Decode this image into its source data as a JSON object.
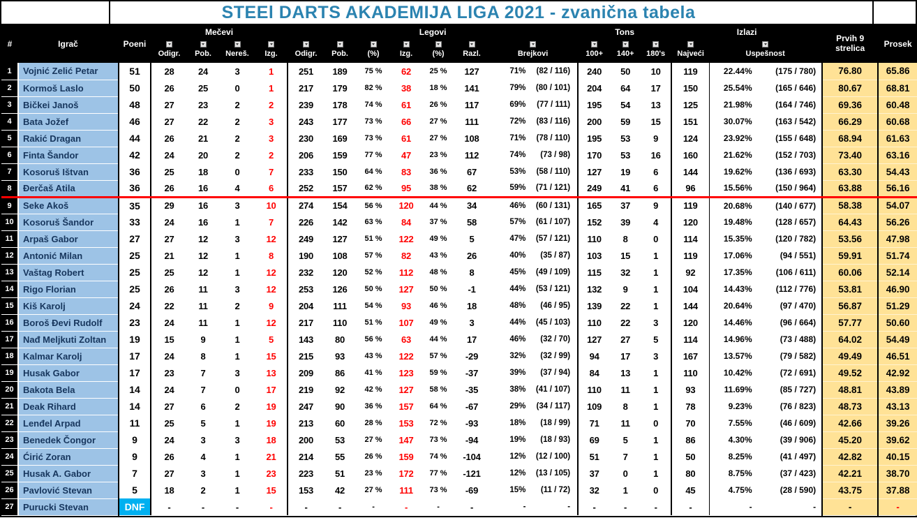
{
  "title": "STEEl DARTS AKADEMIJA LIGA 2021 - zvanična tabela",
  "headers": {
    "rank": "#",
    "player": "Igrač",
    "points": "Poeni",
    "groups": [
      "Mečevi",
      "Legovi",
      "Tons",
      "Izlazi"
    ],
    "sub": [
      "Odigr.",
      "Pob.",
      "Nereš.",
      "Izg.",
      "Odigr.",
      "Pob.",
      "(%)",
      "Izg.",
      "(%)",
      "Razl.",
      "Brejkovi",
      "100+",
      "140+",
      "180's",
      "Najveći",
      "Uspešnost"
    ],
    "first9": "Prvih 9 strelica",
    "average": "Prosek"
  },
  "colors": {
    "title_text": "#2B83B0",
    "header_bg": "#000000",
    "player_bg": "#9DC3E6",
    "player_text": "#17365D",
    "highlight_bg": "#FFE296",
    "loss_red": "#FF0000",
    "dnf_bg": "#00B0F0",
    "separator_red": "#FF0000"
  },
  "chart_data": {
    "type": "table",
    "title": "STEEl DARTS AKADEMIJA LIGA 2021 - zvanična tabela",
    "columns": [
      "#",
      "Igrač",
      "Poeni",
      "Odigr.",
      "Pob.",
      "Nereš.",
      "Izg.",
      "Odigr.",
      "Pob.",
      "(%)",
      "Izg.",
      "(%)",
      "Razl.",
      "Brejkovi",
      "100+",
      "140+",
      "180's",
      "Najveći",
      "Uspešnost",
      "Prvih 9 strelica",
      "Prosek"
    ],
    "rows": [
      {
        "rank": "1",
        "player": "Vojnić Zelić Petar",
        "points": "51",
        "m": [
          "28",
          "24",
          "3",
          "1"
        ],
        "l": [
          "251",
          "189",
          "75 %",
          "62",
          "25 %",
          "127"
        ],
        "brk": [
          "71%",
          "(82 / 116)"
        ],
        "tons": [
          "240",
          "50",
          "10"
        ],
        "co_max": "119",
        "co_pct": "22.44%",
        "co_frac": "(175 / 780)",
        "f9": "76.80",
        "avg": "65.86"
      },
      {
        "rank": "2",
        "player": "Kormoš Laslo",
        "points": "50",
        "m": [
          "26",
          "25",
          "0",
          "1"
        ],
        "l": [
          "217",
          "179",
          "82 %",
          "38",
          "18 %",
          "141"
        ],
        "brk": [
          "79%",
          "(80 / 101)"
        ],
        "tons": [
          "204",
          "64",
          "17"
        ],
        "co_max": "150",
        "co_pct": "25.54%",
        "co_frac": "(165 / 646)",
        "f9": "80.67",
        "avg": "68.81"
      },
      {
        "rank": "3",
        "player": "Bičkei Janoš",
        "points": "48",
        "m": [
          "27",
          "23",
          "2",
          "2"
        ],
        "l": [
          "239",
          "178",
          "74 %",
          "61",
          "26 %",
          "117"
        ],
        "brk": [
          "69%",
          "(77 / 111)"
        ],
        "tons": [
          "195",
          "54",
          "13"
        ],
        "co_max": "125",
        "co_pct": "21.98%",
        "co_frac": "(164 / 746)",
        "f9": "69.36",
        "avg": "60.48"
      },
      {
        "rank": "4",
        "player": "Bata Jožef",
        "points": "46",
        "m": [
          "27",
          "22",
          "2",
          "3"
        ],
        "l": [
          "243",
          "177",
          "73 %",
          "66",
          "27 %",
          "111"
        ],
        "brk": [
          "72%",
          "(83 / 116)"
        ],
        "tons": [
          "200",
          "59",
          "15"
        ],
        "co_max": "151",
        "co_pct": "30.07%",
        "co_frac": "(163 / 542)",
        "f9": "66.29",
        "avg": "60.68"
      },
      {
        "rank": "5",
        "player": "Rakić Dragan",
        "points": "44",
        "m": [
          "26",
          "21",
          "2",
          "3"
        ],
        "l": [
          "230",
          "169",
          "73 %",
          "61",
          "27 %",
          "108"
        ],
        "brk": [
          "71%",
          "(78 / 110)"
        ],
        "tons": [
          "195",
          "53",
          "9"
        ],
        "co_max": "124",
        "co_pct": "23.92%",
        "co_frac": "(155 / 648)",
        "f9": "68.94",
        "avg": "61.63"
      },
      {
        "rank": "6",
        "player": "Finta Šandor",
        "points": "42",
        "m": [
          "24",
          "20",
          "2",
          "2"
        ],
        "l": [
          "206",
          "159",
          "77 %",
          "47",
          "23 %",
          "112"
        ],
        "brk": [
          "74%",
          "(73 / 98)"
        ],
        "tons": [
          "170",
          "53",
          "16"
        ],
        "co_max": "160",
        "co_pct": "21.62%",
        "co_frac": "(152 / 703)",
        "f9": "73.40",
        "avg": "63.16"
      },
      {
        "rank": "7",
        "player": "Kosoruš Ištvan",
        "points": "36",
        "m": [
          "25",
          "18",
          "0",
          "7"
        ],
        "l": [
          "233",
          "150",
          "64 %",
          "83",
          "36 %",
          "67"
        ],
        "brk": [
          "53%",
          "(58 / 110)"
        ],
        "tons": [
          "127",
          "19",
          "6"
        ],
        "co_max": "144",
        "co_pct": "19.62%",
        "co_frac": "(136 / 693)",
        "f9": "63.30",
        "avg": "54.43"
      },
      {
        "rank": "8",
        "player": "Đerčaš Atila",
        "points": "36",
        "m": [
          "26",
          "16",
          "4",
          "6"
        ],
        "l": [
          "252",
          "157",
          "62 %",
          "95",
          "38 %",
          "62"
        ],
        "brk": [
          "59%",
          "(71 / 121)"
        ],
        "tons": [
          "249",
          "41",
          "6"
        ],
        "co_max": "96",
        "co_pct": "15.56%",
        "co_frac": "(150 / 964)",
        "f9": "63.88",
        "avg": "56.16"
      },
      {
        "rank": "9",
        "player": "Seke Akoš",
        "points": "35",
        "m": [
          "29",
          "16",
          "3",
          "10"
        ],
        "l": [
          "274",
          "154",
          "56 %",
          "120",
          "44 %",
          "34"
        ],
        "brk": [
          "46%",
          "(60 / 131)"
        ],
        "tons": [
          "165",
          "37",
          "9"
        ],
        "co_max": "119",
        "co_pct": "20.68%",
        "co_frac": "(140 / 677)",
        "f9": "58.38",
        "avg": "54.07"
      },
      {
        "rank": "10",
        "player": "Kosoruš Šandor",
        "points": "33",
        "m": [
          "24",
          "16",
          "1",
          "7"
        ],
        "l": [
          "226",
          "142",
          "63 %",
          "84",
          "37 %",
          "58"
        ],
        "brk": [
          "57%",
          "(61 / 107)"
        ],
        "tons": [
          "152",
          "39",
          "4"
        ],
        "co_max": "120",
        "co_pct": "19.48%",
        "co_frac": "(128 / 657)",
        "f9": "64.43",
        "avg": "56.26"
      },
      {
        "rank": "11",
        "player": "Arpaš Gabor",
        "points": "27",
        "m": [
          "27",
          "12",
          "3",
          "12"
        ],
        "l": [
          "249",
          "127",
          "51 %",
          "122",
          "49 %",
          "5"
        ],
        "brk": [
          "47%",
          "(57 / 121)"
        ],
        "tons": [
          "110",
          "8",
          "0"
        ],
        "co_max": "114",
        "co_pct": "15.35%",
        "co_frac": "(120 / 782)",
        "f9": "53.56",
        "avg": "47.98"
      },
      {
        "rank": "12",
        "player": "Antonić Milan",
        "points": "25",
        "m": [
          "21",
          "12",
          "1",
          "8"
        ],
        "l": [
          "190",
          "108",
          "57 %",
          "82",
          "43 %",
          "26"
        ],
        "brk": [
          "40%",
          "(35 / 87)"
        ],
        "tons": [
          "103",
          "15",
          "1"
        ],
        "co_max": "119",
        "co_pct": "17.06%",
        "co_frac": "(94 / 551)",
        "f9": "59.91",
        "avg": "51.74"
      },
      {
        "rank": "13",
        "player": "Vaštag Robert",
        "points": "25",
        "m": [
          "25",
          "12",
          "1",
          "12"
        ],
        "l": [
          "232",
          "120",
          "52 %",
          "112",
          "48 %",
          "8"
        ],
        "brk": [
          "45%",
          "(49 / 109)"
        ],
        "tons": [
          "115",
          "32",
          "1"
        ],
        "co_max": "92",
        "co_pct": "17.35%",
        "co_frac": "(106 / 611)",
        "f9": "60.06",
        "avg": "52.14"
      },
      {
        "rank": "14",
        "player": "Rigo Florian",
        "points": "25",
        "m": [
          "26",
          "11",
          "3",
          "12"
        ],
        "l": [
          "253",
          "126",
          "50 %",
          "127",
          "50 %",
          "-1"
        ],
        "brk": [
          "44%",
          "(53 / 121)"
        ],
        "tons": [
          "132",
          "9",
          "1"
        ],
        "co_max": "104",
        "co_pct": "14.43%",
        "co_frac": "(112 / 776)",
        "f9": "53.81",
        "avg": "46.90"
      },
      {
        "rank": "15",
        "player": "Kiš Karolj",
        "points": "24",
        "m": [
          "22",
          "11",
          "2",
          "9"
        ],
        "l": [
          "204",
          "111",
          "54 %",
          "93",
          "46 %",
          "18"
        ],
        "brk": [
          "48%",
          "(46 / 95)"
        ],
        "tons": [
          "139",
          "22",
          "1"
        ],
        "co_max": "144",
        "co_pct": "20.64%",
        "co_frac": "(97 / 470)",
        "f9": "56.87",
        "avg": "51.29"
      },
      {
        "rank": "16",
        "player": "Boroš Đevi Rudolf",
        "points": "23",
        "m": [
          "24",
          "11",
          "1",
          "12"
        ],
        "l": [
          "217",
          "110",
          "51 %",
          "107",
          "49 %",
          "3"
        ],
        "brk": [
          "44%",
          "(45 / 103)"
        ],
        "tons": [
          "110",
          "22",
          "3"
        ],
        "co_max": "120",
        "co_pct": "14.46%",
        "co_frac": "(96 / 664)",
        "f9": "57.77",
        "avg": "50.60"
      },
      {
        "rank": "17",
        "player": "Nađ Meljkuti Zoltan",
        "points": "19",
        "m": [
          "15",
          "9",
          "1",
          "5"
        ],
        "l": [
          "143",
          "80",
          "56 %",
          "63",
          "44 %",
          "17"
        ],
        "brk": [
          "46%",
          "(32 / 70)"
        ],
        "tons": [
          "127",
          "27",
          "5"
        ],
        "co_max": "114",
        "co_pct": "14.96%",
        "co_frac": "(73 / 488)",
        "f9": "64.02",
        "avg": "54.49"
      },
      {
        "rank": "18",
        "player": "Kalmar Karolj",
        "points": "17",
        "m": [
          "24",
          "8",
          "1",
          "15"
        ],
        "l": [
          "215",
          "93",
          "43 %",
          "122",
          "57 %",
          "-29"
        ],
        "brk": [
          "32%",
          "(32 / 99)"
        ],
        "tons": [
          "94",
          "17",
          "3"
        ],
        "co_max": "167",
        "co_pct": "13.57%",
        "co_frac": "(79 / 582)",
        "f9": "49.49",
        "avg": "46.51"
      },
      {
        "rank": "19",
        "player": "Husak Gabor",
        "points": "17",
        "m": [
          "23",
          "7",
          "3",
          "13"
        ],
        "l": [
          "209",
          "86",
          "41 %",
          "123",
          "59 %",
          "-37"
        ],
        "brk": [
          "39%",
          "(37 / 94)"
        ],
        "tons": [
          "84",
          "13",
          "1"
        ],
        "co_max": "110",
        "co_pct": "10.42%",
        "co_frac": "(72 / 691)",
        "f9": "49.52",
        "avg": "42.92"
      },
      {
        "rank": "20",
        "player": "Bakota Bela",
        "points": "14",
        "m": [
          "24",
          "7",
          "0",
          "17"
        ],
        "l": [
          "219",
          "92",
          "42 %",
          "127",
          "58 %",
          "-35"
        ],
        "brk": [
          "38%",
          "(41 / 107)"
        ],
        "tons": [
          "110",
          "11",
          "1"
        ],
        "co_max": "93",
        "co_pct": "11.69%",
        "co_frac": "(85 / 727)",
        "f9": "48.81",
        "avg": "43.89"
      },
      {
        "rank": "21",
        "player": "Deak Rihard",
        "points": "14",
        "m": [
          "27",
          "6",
          "2",
          "19"
        ],
        "l": [
          "247",
          "90",
          "36 %",
          "157",
          "64 %",
          "-67"
        ],
        "brk": [
          "29%",
          "(34 / 117)"
        ],
        "tons": [
          "109",
          "8",
          "1"
        ],
        "co_max": "78",
        "co_pct": "9.23%",
        "co_frac": "(76 / 823)",
        "f9": "48.73",
        "avg": "43.13"
      },
      {
        "rank": "22",
        "player": "Lenđel Arpad",
        "points": "11",
        "m": [
          "25",
          "5",
          "1",
          "19"
        ],
        "l": [
          "213",
          "60",
          "28 %",
          "153",
          "72 %",
          "-93"
        ],
        "brk": [
          "18%",
          "(18 / 99)"
        ],
        "tons": [
          "71",
          "11",
          "0"
        ],
        "co_max": "70",
        "co_pct": "7.55%",
        "co_frac": "(46 / 609)",
        "f9": "42.66",
        "avg": "39.26"
      },
      {
        "rank": "23",
        "player": "Benedek Čongor",
        "points": "9",
        "m": [
          "24",
          "3",
          "3",
          "18"
        ],
        "l": [
          "200",
          "53",
          "27 %",
          "147",
          "73 %",
          "-94"
        ],
        "brk": [
          "19%",
          "(18 / 93)"
        ],
        "tons": [
          "69",
          "5",
          "1"
        ],
        "co_max": "86",
        "co_pct": "4.30%",
        "co_frac": "(39 / 906)",
        "f9": "45.20",
        "avg": "39.62"
      },
      {
        "rank": "24",
        "player": "Ćirić Zoran",
        "points": "9",
        "m": [
          "26",
          "4",
          "1",
          "21"
        ],
        "l": [
          "214",
          "55",
          "26 %",
          "159",
          "74 %",
          "-104"
        ],
        "brk": [
          "12%",
          "(12 / 100)"
        ],
        "tons": [
          "51",
          "7",
          "1"
        ],
        "co_max": "50",
        "co_pct": "8.25%",
        "co_frac": "(41 / 497)",
        "f9": "42.82",
        "avg": "40.15"
      },
      {
        "rank": "25",
        "player": "Husak A. Gabor",
        "points": "7",
        "m": [
          "27",
          "3",
          "1",
          "23"
        ],
        "l": [
          "223",
          "51",
          "23 %",
          "172",
          "77 %",
          "-121"
        ],
        "brk": [
          "12%",
          "(13 / 105)"
        ],
        "tons": [
          "37",
          "0",
          "1"
        ],
        "co_max": "80",
        "co_pct": "8.75%",
        "co_frac": "(37 / 423)",
        "f9": "42.21",
        "avg": "38.70"
      },
      {
        "rank": "26",
        "player": "Pavlović Stevan",
        "points": "5",
        "m": [
          "18",
          "2",
          "1",
          "15"
        ],
        "l": [
          "153",
          "42",
          "27 %",
          "111",
          "73 %",
          "-69"
        ],
        "brk": [
          "15%",
          "(11 / 72)"
        ],
        "tons": [
          "32",
          "1",
          "0"
        ],
        "co_max": "45",
        "co_pct": "4.75%",
        "co_frac": "(28 / 590)",
        "f9": "43.75",
        "avg": "37.88"
      },
      {
        "rank": "27",
        "player": "Purucki Stevan",
        "points": "DNF",
        "dnf": true,
        "m": [
          "-",
          "-",
          "-",
          "-"
        ],
        "l": [
          "-",
          "-",
          "-",
          "-",
          "-",
          "-"
        ],
        "brk": [
          "-",
          "-"
        ],
        "tons": [
          "-",
          "-",
          "-"
        ],
        "co_max": "-",
        "co_pct": "-",
        "co_frac": "-",
        "f9": "-",
        "avg": "-"
      }
    ]
  }
}
